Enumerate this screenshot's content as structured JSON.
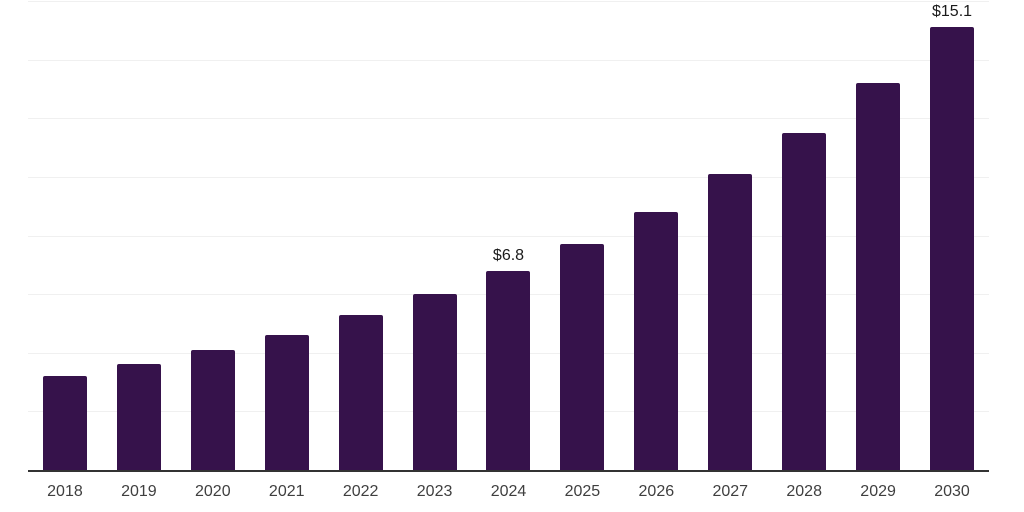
{
  "chart_data": {
    "type": "bar",
    "title": "",
    "xlabel": "",
    "ylabel": "",
    "categories": [
      "2018",
      "2019",
      "2020",
      "2021",
      "2022",
      "2023",
      "2024",
      "2025",
      "2026",
      "2027",
      "2028",
      "2029",
      "2030"
    ],
    "values": [
      3.2,
      3.6,
      4.1,
      4.6,
      5.3,
      6.0,
      6.8,
      7.7,
      8.8,
      10.1,
      11.5,
      13.2,
      15.1
    ],
    "data_labels": [
      {
        "index": 6,
        "text": "$6.8"
      },
      {
        "index": 12,
        "text": "$15.1"
      }
    ],
    "ylim": [
      0,
      16
    ],
    "grid_step": 2,
    "grid_on": true,
    "legend": "none",
    "colors": {
      "bar": "#36124B",
      "grid": "#f0f0f0",
      "axis": "#333333",
      "tick_label": "#3f3f3f",
      "data_label": "#1a1a1a",
      "background": "#ffffff"
    }
  }
}
